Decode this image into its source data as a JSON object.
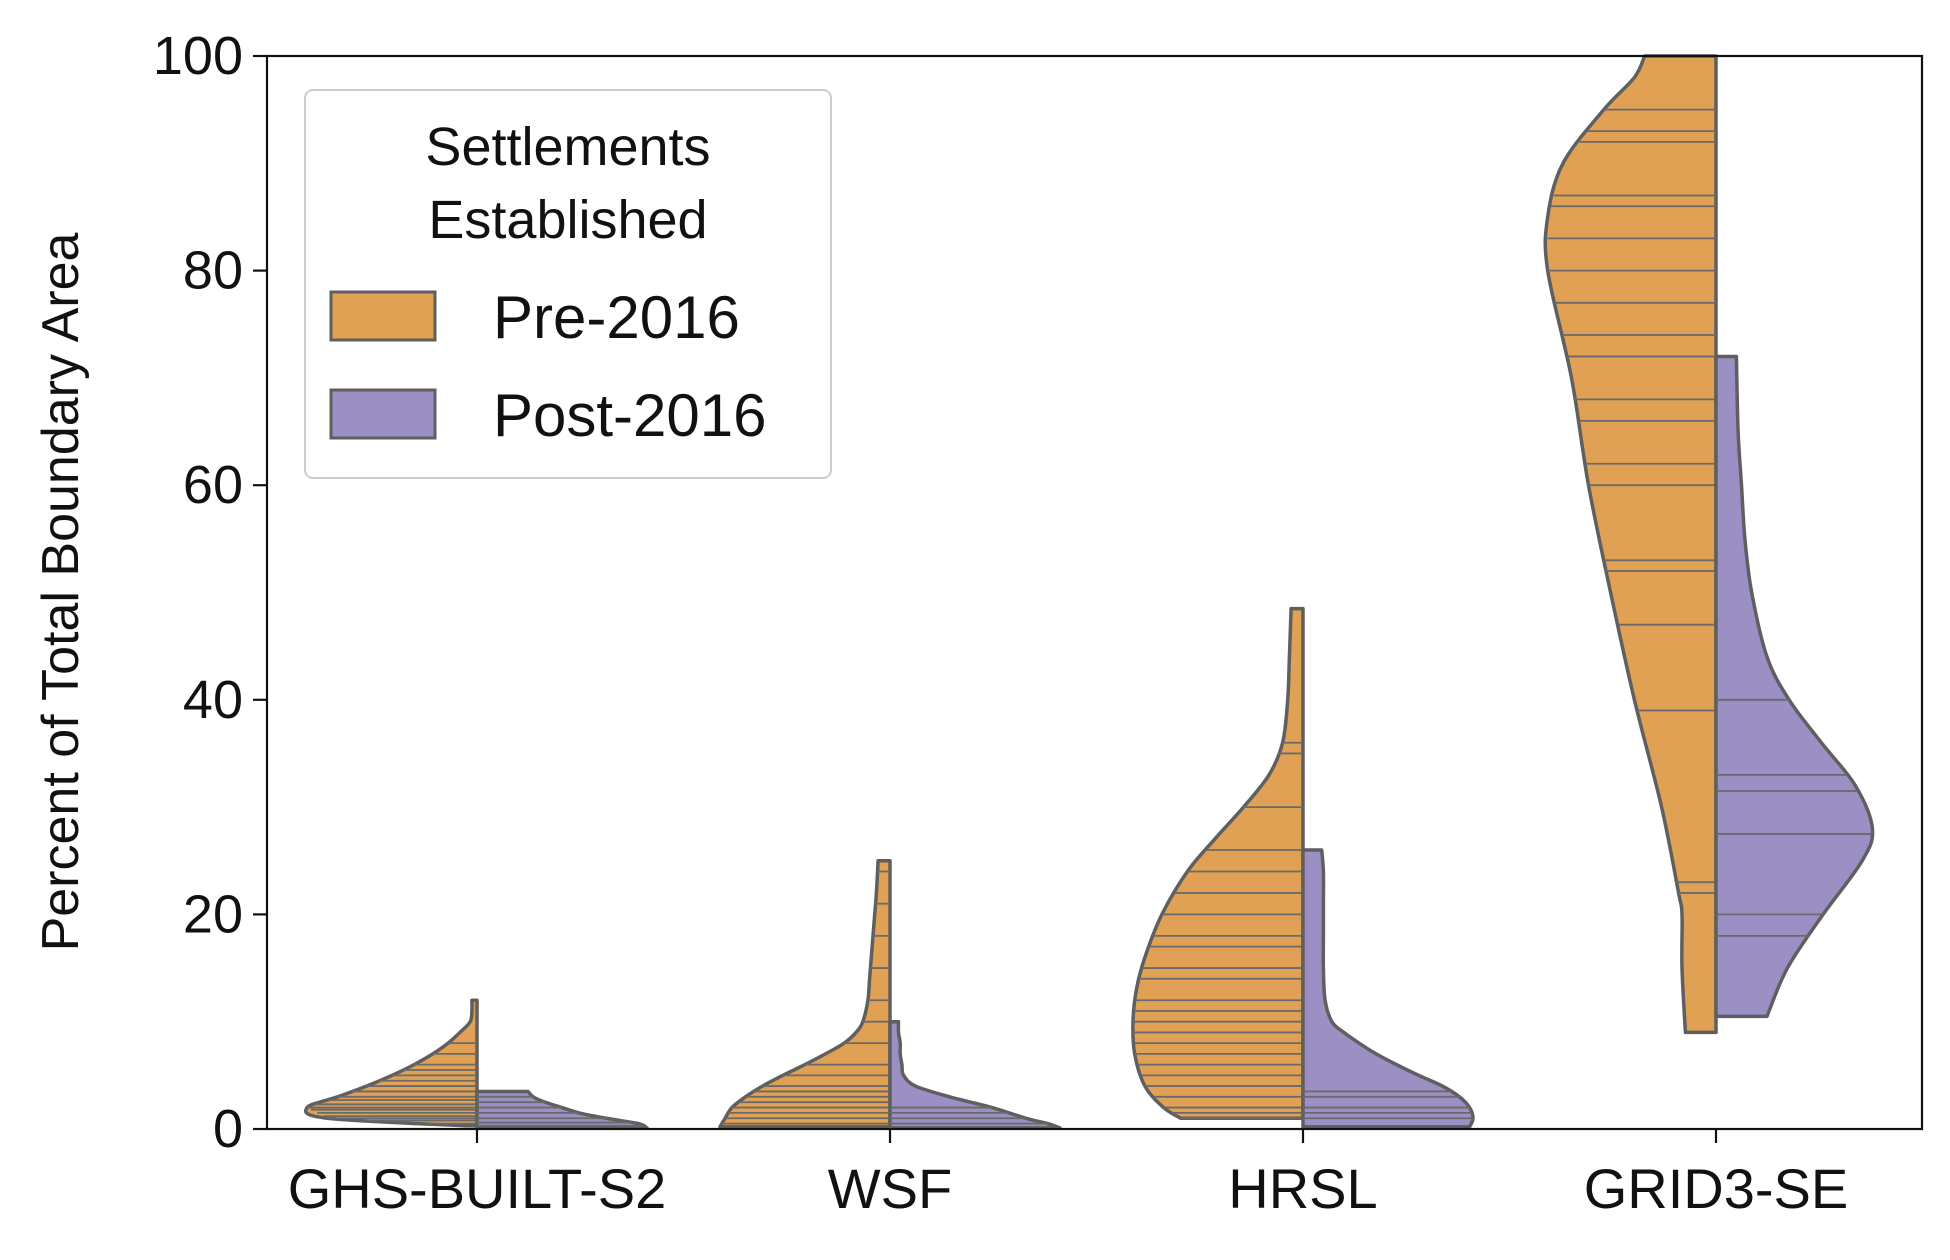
{
  "chart_data": {
    "type": "violin",
    "title": "",
    "xlabel": "",
    "ylabel": "Percent of Total Boundary Area",
    "ylim": [
      0,
      100
    ],
    "yticks": [
      0,
      20,
      40,
      60,
      80,
      100
    ],
    "categories": [
      "GHS-BUILT-S2",
      "WSF",
      "HRSL",
      "GRID3-SE"
    ],
    "legend": {
      "title_line1": "Settlements",
      "title_line2": "Established",
      "location": "upper-left",
      "entries": [
        "Pre-2016",
        "Post-2016"
      ]
    },
    "series": [
      {
        "name": "Pre-2016",
        "color": "#e0a155",
        "side": "left",
        "violins": [
          {
            "category": "GHS-BUILT-S2",
            "min": 0.3,
            "max": 12,
            "profile": [
              [
                0.3,
                0.07
              ],
              [
                1,
                0.88
              ],
              [
                2,
                1.0
              ],
              [
                3,
                0.82
              ],
              [
                4,
                0.65
              ],
              [
                5,
                0.5
              ],
              [
                6,
                0.37
              ],
              [
                7,
                0.26
              ],
              [
                8,
                0.17
              ],
              [
                9,
                0.1
              ],
              [
                10,
                0.04
              ],
              [
                11,
                0.03
              ],
              [
                12,
                0.03
              ]
            ],
            "observations": [
              0.5,
              0.8,
              1,
              1.2,
              1.5,
              1.8,
              2,
              2.3,
              2.7,
              3,
              3.5,
              4,
              4.5,
              5,
              5.5,
              6,
              7,
              8
            ]
          },
          {
            "category": "WSF",
            "min": 0.2,
            "max": 25,
            "profile": [
              [
                0.2,
                1.0
              ],
              [
                1,
                0.97
              ],
              [
                2,
                0.93
              ],
              [
                3,
                0.85
              ],
              [
                4,
                0.75
              ],
              [
                5,
                0.63
              ],
              [
                6,
                0.5
              ],
              [
                7,
                0.38
              ],
              [
                8,
                0.27
              ],
              [
                9,
                0.2
              ],
              [
                10,
                0.16
              ],
              [
                12,
                0.13
              ],
              [
                14,
                0.12
              ],
              [
                16,
                0.11
              ],
              [
                18,
                0.1
              ],
              [
                20,
                0.09
              ],
              [
                22,
                0.08
              ],
              [
                25,
                0.07
              ]
            ],
            "observations": [
              0.5,
              1,
              1.5,
              2,
              2.5,
              3,
              3.5,
              4,
              5,
              6,
              8,
              10,
              12,
              15,
              18,
              21,
              24
            ]
          },
          {
            "category": "HRSL",
            "min": 1,
            "max": 48.5,
            "profile": [
              [
                1,
                0.72
              ],
              [
                2,
                0.82
              ],
              [
                4,
                0.93
              ],
              [
                7,
                0.99
              ],
              [
                10,
                1.0
              ],
              [
                13,
                0.98
              ],
              [
                16,
                0.93
              ],
              [
                20,
                0.83
              ],
              [
                24,
                0.68
              ],
              [
                27,
                0.52
              ],
              [
                30,
                0.35
              ],
              [
                33,
                0.2
              ],
              [
                36,
                0.12
              ],
              [
                40,
                0.09
              ],
              [
                44,
                0.08
              ],
              [
                48.5,
                0.07
              ]
            ],
            "observations": [
              1,
              1.5,
              2,
              3,
              4,
              5,
              6,
              7,
              8,
              9,
              10,
              11,
              12,
              14,
              15,
              17,
              18,
              20,
              22,
              24,
              26,
              30,
              35,
              36
            ]
          },
          {
            "category": "GRID3-SE",
            "min": 9,
            "max": 100,
            "profile": [
              [
                9,
                0.18
              ],
              [
                15,
                0.2
              ],
              [
                20,
                0.2
              ],
              [
                22,
                0.22
              ],
              [
                30,
                0.32
              ],
              [
                40,
                0.48
              ],
              [
                50,
                0.62
              ],
              [
                60,
                0.75
              ],
              [
                70,
                0.85
              ],
              [
                80,
                0.99
              ],
              [
                85,
                0.99
              ],
              [
                90,
                0.9
              ],
              [
                95,
                0.66
              ],
              [
                98,
                0.48
              ],
              [
                100,
                0.42
              ]
            ],
            "observations": [
              22,
              23,
              39,
              47,
              52,
              53,
              60,
              62,
              66,
              68,
              72,
              74,
              77,
              80,
              83,
              86,
              87,
              92,
              93,
              95
            ]
          }
        ]
      },
      {
        "name": "Post-2016",
        "color": "#9b8fc4",
        "side": "right",
        "violins": [
          {
            "category": "GHS-BUILT-S2",
            "min": 0.1,
            "max": 3.5,
            "profile": [
              [
                0.1,
                1.0
              ],
              [
                0.5,
                0.95
              ],
              [
                1,
                0.76
              ],
              [
                1.5,
                0.6
              ],
              [
                2,
                0.5
              ],
              [
                2.5,
                0.4
              ],
              [
                3,
                0.33
              ],
              [
                3.5,
                0.3
              ]
            ],
            "observations": [
              0.3,
              0.6,
              1,
              1.5,
              2,
              2.5,
              3
            ]
          },
          {
            "category": "WSF",
            "min": 0.1,
            "max": 10,
            "profile": [
              [
                0.1,
                1.0
              ],
              [
                0.5,
                0.93
              ],
              [
                1,
                0.8
              ],
              [
                2,
                0.6
              ],
              [
                3,
                0.35
              ],
              [
                4,
                0.15
              ],
              [
                5,
                0.08
              ],
              [
                6,
                0.07
              ],
              [
                7,
                0.06
              ],
              [
                8,
                0.06
              ],
              [
                9,
                0.05
              ],
              [
                10,
                0.05
              ]
            ],
            "observations": [
              0.5,
              1,
              1.5,
              2
            ]
          },
          {
            "category": "HRSL",
            "min": 0.2,
            "max": 26,
            "profile": [
              [
                0.2,
                0.98
              ],
              [
                1,
                1.0
              ],
              [
                2,
                0.98
              ],
              [
                3,
                0.92
              ],
              [
                4,
                0.82
              ],
              [
                5,
                0.68
              ],
              [
                6,
                0.55
              ],
              [
                7,
                0.43
              ],
              [
                8,
                0.33
              ],
              [
                9,
                0.24
              ],
              [
                10,
                0.17
              ],
              [
                12,
                0.13
              ],
              [
                15,
                0.12
              ],
              [
                18,
                0.12
              ],
              [
                21,
                0.12
              ],
              [
                24,
                0.12
              ],
              [
                26,
                0.11
              ]
            ],
            "observations": [
              1,
              1.5,
              2,
              3,
              3.5
            ]
          },
          {
            "category": "GRID3-SE",
            "min": 10.5,
            "max": 72,
            "profile": [
              [
                10.5,
                0.3
              ],
              [
                15,
                0.42
              ],
              [
                20,
                0.63
              ],
              [
                25,
                0.86
              ],
              [
                28,
                0.92
              ],
              [
                32,
                0.82
              ],
              [
                36,
                0.62
              ],
              [
                40,
                0.43
              ],
              [
                44,
                0.3
              ],
              [
                50,
                0.21
              ],
              [
                55,
                0.17
              ],
              [
                60,
                0.15
              ],
              [
                65,
                0.13
              ],
              [
                72,
                0.12
              ]
            ],
            "observations": [
              18,
              20,
              27.5,
              31.5,
              33,
              40
            ]
          }
        ]
      }
    ]
  }
}
